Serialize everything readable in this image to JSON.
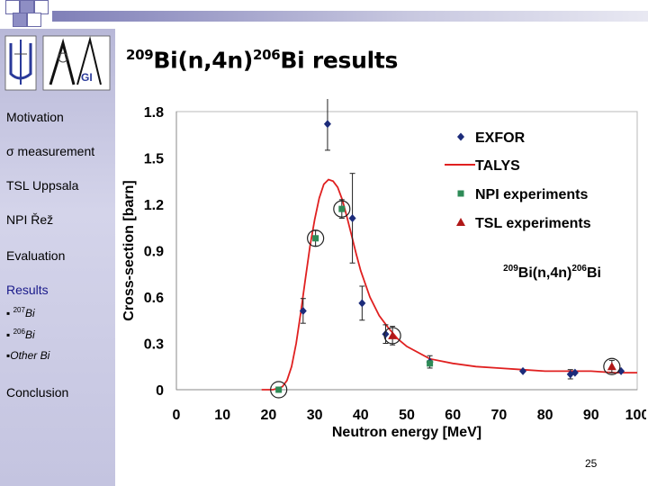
{
  "slide": {
    "title_mass_target": "209",
    "title_element_target": "Bi",
    "title_reaction": "(n,4n)",
    "title_mass_product": "206",
    "title_element_product": "Bi",
    "title_suffix": " results",
    "page_number": "25"
  },
  "sidebar": {
    "items": [
      {
        "label": "Motivation"
      },
      {
        "label": "σ measurement"
      },
      {
        "label": "TSL Uppsala"
      },
      {
        "label": "NPI Řež"
      },
      {
        "label": "Evaluation"
      },
      {
        "label": "Results"
      }
    ],
    "sub_items": [
      {
        "bullet": "▪",
        "mass": "207",
        "element": "Bi"
      },
      {
        "bullet": "▪",
        "mass": "206",
        "element": "Bi"
      },
      {
        "bullet": "▪",
        "mass": "",
        "element": "Other Bi"
      }
    ],
    "conclusion": "Conclusion"
  },
  "colors": {
    "exfor": "#1c2b7a",
    "talys": "#e02020",
    "npi": "#2e8b57",
    "tsl": "#b01818",
    "sidebar": "#c8c8e4",
    "active": "#1a1a8a"
  },
  "chart_data": {
    "type": "scatter",
    "title": "",
    "annotation": {
      "mass_target": "209",
      "element_target": "Bi",
      "reaction": "(n,4n)",
      "mass_product": "206",
      "element_product": "Bi"
    },
    "xlabel": "Neutron energy [MeV]",
    "ylabel": "Cross-section [barn]",
    "xlim": [
      0,
      100
    ],
    "ylim": [
      0,
      1.8
    ],
    "xticks": [
      "0",
      "10",
      "20",
      "30",
      "40",
      "50",
      "60",
      "70",
      "80",
      "90",
      "100"
    ],
    "yticks": [
      "0",
      "0.3",
      "0.6",
      "0.9",
      "1.2",
      "1.5",
      "1.8"
    ],
    "legend_position": "top-right",
    "series": [
      {
        "name": "EXFOR",
        "kind": "diamond",
        "points": [
          {
            "x": 27.5,
            "y": 0.51,
            "err": 0.08
          },
          {
            "x": 32.8,
            "y": 1.72,
            "err": 0.17
          },
          {
            "x": 38.2,
            "y": 1.11,
            "err": 0.29
          },
          {
            "x": 40.3,
            "y": 0.56,
            "err": 0.11
          },
          {
            "x": 45.4,
            "y": 0.36,
            "err": 0.06
          },
          {
            "x": 55.0,
            "y": 0.18,
            "err": 0.04
          },
          {
            "x": 75.2,
            "y": 0.12,
            "err": 0.0
          },
          {
            "x": 85.5,
            "y": 0.1,
            "err": 0.03
          },
          {
            "x": 86.5,
            "y": 0.11,
            "err": 0.0
          },
          {
            "x": 96.5,
            "y": 0.12,
            "err": 0.0
          }
        ]
      },
      {
        "name": "TALYS",
        "kind": "line",
        "x": [
          18.5,
          20,
          21,
          22,
          23,
          24,
          25,
          26,
          27,
          28,
          29,
          30,
          31,
          32,
          33,
          34,
          35,
          36,
          37,
          38,
          39,
          40,
          42,
          44,
          46,
          48,
          50,
          55,
          60,
          65,
          70,
          75,
          80,
          85,
          90,
          95,
          100
        ],
        "values": [
          0.0,
          0.0,
          0.0,
          0.01,
          0.02,
          0.06,
          0.15,
          0.3,
          0.5,
          0.72,
          0.93,
          1.1,
          1.24,
          1.33,
          1.36,
          1.35,
          1.31,
          1.23,
          1.12,
          1.0,
          0.88,
          0.77,
          0.6,
          0.48,
          0.4,
          0.33,
          0.28,
          0.2,
          0.17,
          0.15,
          0.14,
          0.13,
          0.12,
          0.12,
          0.12,
          0.11,
          0.11
        ]
      },
      {
        "name": "NPI experiments",
        "kind": "square",
        "points": [
          {
            "x": 22.2,
            "y": 0.0,
            "err": 0.0,
            "circled": true
          },
          {
            "x": 30.2,
            "y": 0.98,
            "err": 0.05,
            "circled": true
          },
          {
            "x": 35.9,
            "y": 1.17,
            "err": 0.06,
            "circled": true
          },
          {
            "x": 55.0,
            "y": 0.17,
            "err": 0.0,
            "circled": false
          }
        ]
      },
      {
        "name": "TSL experiments",
        "kind": "triangle",
        "points": [
          {
            "x": 46.9,
            "y": 0.35,
            "err": 0.06,
            "circled": true
          },
          {
            "x": 94.5,
            "y": 0.15,
            "err": 0.04,
            "circled": true
          }
        ]
      }
    ]
  }
}
